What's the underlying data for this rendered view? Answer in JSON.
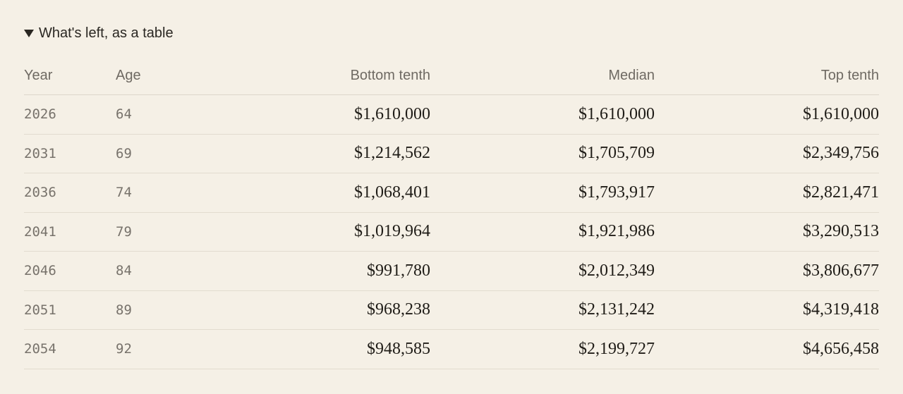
{
  "details": {
    "summary_label": "What's left, as a table"
  },
  "table": {
    "headers": {
      "year": "Year",
      "age": "Age",
      "bottom": "Bottom tenth",
      "median": "Median",
      "top": "Top tenth"
    },
    "rows": [
      {
        "year": "2026",
        "age": "64",
        "bottom": "$1,610,000",
        "median": "$1,610,000",
        "top": "$1,610,000"
      },
      {
        "year": "2031",
        "age": "69",
        "bottom": "$1,214,562",
        "median": "$1,705,709",
        "top": "$2,349,756"
      },
      {
        "year": "2036",
        "age": "74",
        "bottom": "$1,068,401",
        "median": "$1,793,917",
        "top": "$2,821,471"
      },
      {
        "year": "2041",
        "age": "79",
        "bottom": "$1,019,964",
        "median": "$1,921,986",
        "top": "$3,290,513"
      },
      {
        "year": "2046",
        "age": "84",
        "bottom": "$991,780",
        "median": "$2,012,349",
        "top": "$3,806,677"
      },
      {
        "year": "2051",
        "age": "89",
        "bottom": "$968,238",
        "median": "$2,131,242",
        "top": "$4,319,418"
      },
      {
        "year": "2054",
        "age": "92",
        "bottom": "$948,585",
        "median": "$2,199,727",
        "top": "$4,656,458"
      }
    ]
  }
}
